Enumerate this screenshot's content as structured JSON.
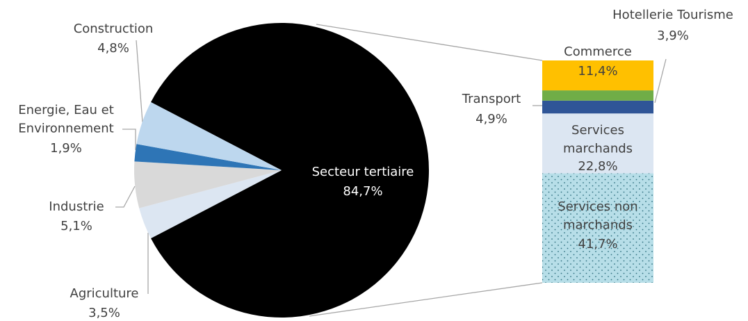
{
  "chart_data": [
    {
      "type": "pie",
      "categories": [
        "Secteur tertiaire",
        "Agriculture",
        "Industrie",
        "Energie, Eau et\nEnvironnement",
        "Construction"
      ],
      "values": [
        84.7,
        3.5,
        5.1,
        1.9,
        4.8
      ],
      "value_labels": [
        "84,7%",
        "3,5%",
        "5,1%",
        "1,9%",
        "4,8%"
      ],
      "colors": [
        "#000000",
        "#dce6f2",
        "#d9d9d9",
        "#2e75b6",
        "#bdd7ee"
      ]
    },
    {
      "type": "stacked-bar",
      "categories": [
        "Services non\nmarchands",
        "Services\nmarchands",
        "Transport",
        "Hotellerie Tourisme",
        "Commerce"
      ],
      "values": [
        41.7,
        22.8,
        4.9,
        3.9,
        11.4
      ],
      "value_labels": [
        "41,7%",
        "22,8%",
        "4,9%",
        "3,9%",
        "11,4%"
      ],
      "colors": [
        "#b7dee8",
        "#dce6f2",
        "#2f5597",
        "#70ad47",
        "#ffc000"
      ],
      "patterns": [
        "dots",
        null,
        null,
        null,
        null
      ]
    }
  ]
}
